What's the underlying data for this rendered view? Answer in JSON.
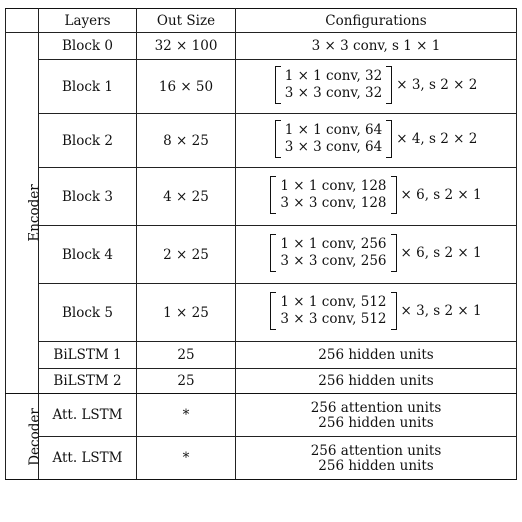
{
  "header": {
    "group": "",
    "layers": "Layers",
    "out_size": "Out Size",
    "config": "Configurations"
  },
  "encoder_label": "Encoder",
  "decoder_label": "Decoder",
  "encoder_rows": [
    {
      "layer": "Block 0",
      "out": "32 × 100",
      "config_simple": "3 × 3 conv, s 1 × 1"
    },
    {
      "layer": "Block 1",
      "out": "16 × 50",
      "line1": "1 × 1 conv, 32",
      "line2": "3 × 3 conv, 32",
      "repeat": "× 3, s 2 × 2"
    },
    {
      "layer": "Block 2",
      "out": "8 × 25",
      "line1": "1 × 1 conv, 64",
      "line2": "3 × 3 conv, 64",
      "repeat": "× 4, s 2 × 2"
    },
    {
      "layer": "Block 3",
      "out": "4 × 25",
      "line1": "1 × 1 conv, 128",
      "line2": "3 × 3 conv, 128",
      "repeat": "× 6, s 2 × 1"
    },
    {
      "layer": "Block 4",
      "out": "2 × 25",
      "line1": "1 × 1 conv, 256",
      "line2": "3 × 3 conv, 256",
      "repeat": "× 6, s 2 × 1"
    },
    {
      "layer": "Block 5",
      "out": "1 × 25",
      "line1": "1 × 1 conv, 512",
      "line2": "3 × 3 conv, 512",
      "repeat": "× 3, s 2 × 1"
    },
    {
      "layer": "BiLSTM 1",
      "out": "25",
      "config_simple": "256 hidden units"
    },
    {
      "layer": "BiLSTM 2",
      "out": "25",
      "config_simple": "256 hidden units"
    }
  ],
  "decoder_rows": [
    {
      "layer": "Att. LSTM",
      "out": "*",
      "line1": "256 attention units",
      "line2": "256 hidden units"
    },
    {
      "layer": "Att. LSTM",
      "out": "*",
      "line1": "256 attention units",
      "line2": "256 hidden units"
    }
  ]
}
